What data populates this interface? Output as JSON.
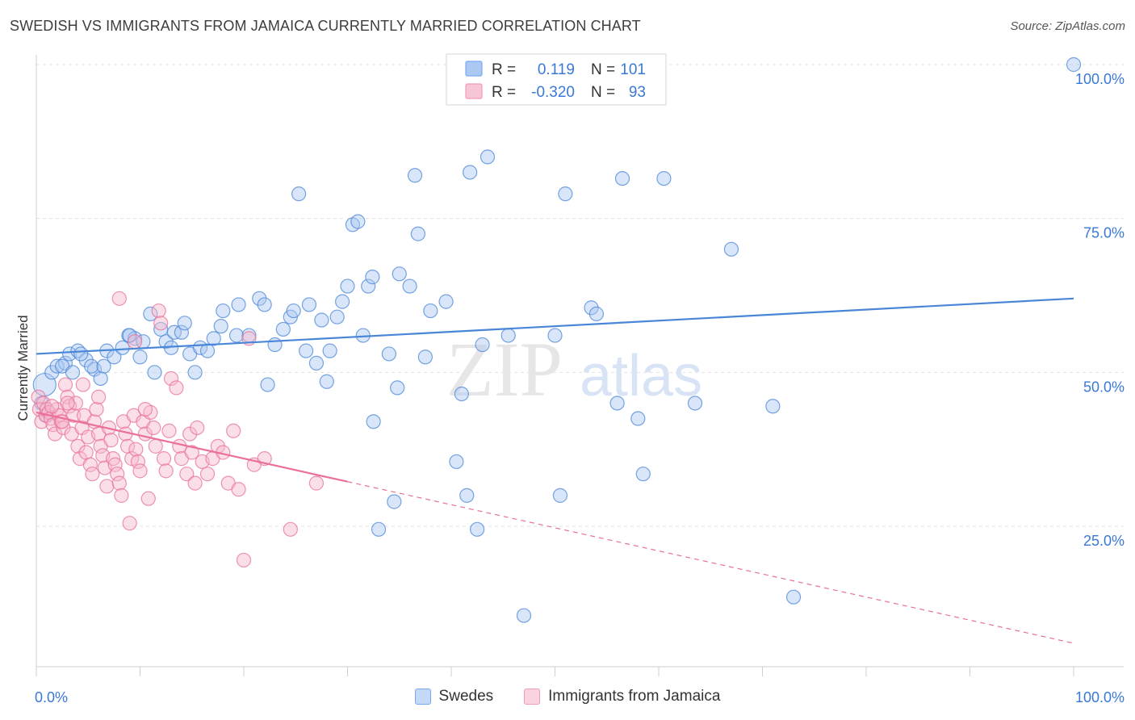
{
  "title": "SWEDISH VS IMMIGRANTS FROM JAMAICA CURRENTLY MARRIED CORRELATION CHART",
  "source": "Source: ZipAtlas.com",
  "watermark": {
    "zip": "ZIP",
    "atlas": "atlas"
  },
  "stats_legend": {
    "rows": [
      {
        "r_label": "R =",
        "r_value": "0.119",
        "n_label": "N =",
        "n_value": "101",
        "color": "#7aaaf0"
      },
      {
        "r_label": "R =",
        "r_value": "-0.320",
        "n_label": "N =",
        "n_value": "93",
        "color": "#f29bb8"
      }
    ]
  },
  "chart_data": {
    "type": "scatter",
    "xlabel": "",
    "ylabel": "Currently Married",
    "x_tick_labels": [
      "0.0%",
      "100.0%"
    ],
    "y_tick_labels": [
      "25.0%",
      "50.0%",
      "75.0%",
      "100.0%"
    ],
    "y_ticks": [
      25,
      50,
      75,
      100
    ],
    "xlim": [
      0,
      100
    ],
    "ylim": [
      0,
      100
    ],
    "grid": true,
    "series": [
      {
        "name": "Swedes",
        "color": "#4a86d8",
        "fill": "#aac8f2",
        "trend": {
          "x0": 0,
          "y0": 53.0,
          "x1": 100,
          "y1": 62.0,
          "dashed_from": null
        },
        "points": [
          [
            0.8,
            48
          ],
          [
            1.5,
            50
          ],
          [
            2.0,
            51
          ],
          [
            2.8,
            51.5
          ],
          [
            3.2,
            53
          ],
          [
            4.0,
            53.5
          ],
          [
            4.8,
            52
          ],
          [
            5.6,
            50.5
          ],
          [
            6.2,
            49
          ],
          [
            6.8,
            53.5
          ],
          [
            7.5,
            52.5
          ],
          [
            8.3,
            54
          ],
          [
            8.9,
            56
          ],
          [
            9.5,
            55.5
          ],
          [
            10.0,
            52.5
          ],
          [
            10.3,
            55
          ],
          [
            11.0,
            59.5
          ],
          [
            11.4,
            50
          ],
          [
            12.0,
            57
          ],
          [
            12.5,
            55
          ],
          [
            13.0,
            54
          ],
          [
            13.3,
            56.5
          ],
          [
            14.0,
            56.5
          ],
          [
            14.3,
            58
          ],
          [
            14.8,
            53
          ],
          [
            15.3,
            50
          ],
          [
            15.8,
            54
          ],
          [
            16.5,
            53.5
          ],
          [
            17.1,
            55.5
          ],
          [
            17.8,
            57.5
          ],
          [
            18.0,
            60
          ],
          [
            19.3,
            56
          ],
          [
            19.5,
            61
          ],
          [
            20.5,
            56
          ],
          [
            21.5,
            62
          ],
          [
            22.0,
            61
          ],
          [
            22.3,
            48
          ],
          [
            23.0,
            54.5
          ],
          [
            23.8,
            57
          ],
          [
            24.5,
            59
          ],
          [
            24.8,
            60
          ],
          [
            25.3,
            79
          ],
          [
            26.0,
            53.5
          ],
          [
            26.3,
            61
          ],
          [
            27.0,
            51.5
          ],
          [
            27.5,
            58.5
          ],
          [
            28.0,
            48.5
          ],
          [
            28.3,
            53.5
          ],
          [
            29.0,
            59
          ],
          [
            29.5,
            61.5
          ],
          [
            30.0,
            64
          ],
          [
            30.5,
            74
          ],
          [
            31.0,
            74.5
          ],
          [
            31.5,
            56
          ],
          [
            32.0,
            64
          ],
          [
            32.4,
            65.5
          ],
          [
            32.5,
            42
          ],
          [
            33.0,
            24.5
          ],
          [
            34.0,
            53
          ],
          [
            34.5,
            29
          ],
          [
            34.8,
            47.5
          ],
          [
            35.0,
            66
          ],
          [
            36.0,
            64
          ],
          [
            36.5,
            82
          ],
          [
            36.8,
            72.5
          ],
          [
            37.5,
            52.5
          ],
          [
            38.0,
            60
          ],
          [
            39.5,
            61.5
          ],
          [
            40.5,
            35.5
          ],
          [
            41.0,
            46.5
          ],
          [
            41.5,
            30
          ],
          [
            41.8,
            82.5
          ],
          [
            42.5,
            24.5
          ],
          [
            43.0,
            54.5
          ],
          [
            43.5,
            85
          ],
          [
            45.5,
            56
          ],
          [
            47.0,
            10.5
          ],
          [
            47.5,
            100
          ],
          [
            50.0,
            56
          ],
          [
            50.5,
            30
          ],
          [
            51.0,
            79
          ],
          [
            53.5,
            60.5
          ],
          [
            54.0,
            59.5
          ],
          [
            56.0,
            45
          ],
          [
            56.5,
            81.5
          ],
          [
            58.0,
            42.5
          ],
          [
            58.5,
            33.5
          ],
          [
            60.5,
            81.5
          ],
          [
            63.5,
            45
          ],
          [
            67.0,
            70
          ],
          [
            71.0,
            44.5
          ],
          [
            73.0,
            13.5
          ],
          [
            100.0,
            100
          ],
          [
            0.5,
            45
          ],
          [
            1.0,
            43
          ],
          [
            4.3,
            53
          ],
          [
            9.0,
            56
          ],
          [
            5.3,
            51
          ],
          [
            6.5,
            51
          ],
          [
            2.5,
            51
          ],
          [
            3.5,
            50
          ]
        ]
      },
      {
        "name": "Immigrants from Jamaica",
        "color": "#e8709a",
        "fill": "#f6b8cc",
        "trend": {
          "x0": 0,
          "y0": 43.5,
          "x1": 100,
          "y1": 6.0,
          "dashed_from": 30
        },
        "points": [
          [
            0.2,
            46
          ],
          [
            0.3,
            44
          ],
          [
            0.5,
            42
          ],
          [
            0.7,
            45
          ],
          [
            0.9,
            43
          ],
          [
            1.0,
            44
          ],
          [
            1.2,
            43.5
          ],
          [
            1.4,
            42.5
          ],
          [
            1.6,
            41.5
          ],
          [
            1.8,
            40
          ],
          [
            2.0,
            44
          ],
          [
            2.2,
            43
          ],
          [
            2.4,
            42
          ],
          [
            2.6,
            41
          ],
          [
            2.8,
            48
          ],
          [
            3.0,
            46
          ],
          [
            3.2,
            44.5
          ],
          [
            3.4,
            40
          ],
          [
            3.6,
            43
          ],
          [
            3.8,
            45
          ],
          [
            4.0,
            38
          ],
          [
            4.2,
            36
          ],
          [
            4.4,
            41
          ],
          [
            4.6,
            43
          ],
          [
            4.8,
            37
          ],
          [
            5.0,
            39.5
          ],
          [
            5.2,
            35
          ],
          [
            5.4,
            33.5
          ],
          [
            5.6,
            42
          ],
          [
            5.8,
            44
          ],
          [
            6.0,
            40
          ],
          [
            6.2,
            38
          ],
          [
            6.4,
            36.5
          ],
          [
            6.6,
            34.5
          ],
          [
            6.8,
            31.5
          ],
          [
            7.0,
            41
          ],
          [
            7.2,
            39
          ],
          [
            7.4,
            36
          ],
          [
            7.6,
            35
          ],
          [
            7.8,
            33.5
          ],
          [
            8.0,
            32
          ],
          [
            8.2,
            30
          ],
          [
            8.4,
            42
          ],
          [
            8.6,
            40
          ],
          [
            8.8,
            38
          ],
          [
            9.0,
            25.5
          ],
          [
            9.2,
            36
          ],
          [
            9.4,
            43
          ],
          [
            9.6,
            37.5
          ],
          [
            9.8,
            35.5
          ],
          [
            10.0,
            34
          ],
          [
            10.3,
            42
          ],
          [
            10.5,
            40
          ],
          [
            10.8,
            29.5
          ],
          [
            11.0,
            43.5
          ],
          [
            11.3,
            41
          ],
          [
            11.5,
            38
          ],
          [
            11.8,
            60
          ],
          [
            12.0,
            58
          ],
          [
            12.3,
            36
          ],
          [
            12.5,
            34
          ],
          [
            12.8,
            40.5
          ],
          [
            13.0,
            49
          ],
          [
            13.5,
            47.5
          ],
          [
            13.8,
            38
          ],
          [
            14.0,
            36
          ],
          [
            14.5,
            33.5
          ],
          [
            14.8,
            40
          ],
          [
            15.0,
            37
          ],
          [
            15.3,
            32
          ],
          [
            15.5,
            41
          ],
          [
            16.0,
            35.5
          ],
          [
            16.5,
            33.5
          ],
          [
            17.0,
            36
          ],
          [
            17.5,
            38
          ],
          [
            18.0,
            37
          ],
          [
            18.5,
            32
          ],
          [
            19.0,
            40.5
          ],
          [
            19.5,
            31
          ],
          [
            20.0,
            19.5
          ],
          [
            20.5,
            55.5
          ],
          [
            21.0,
            35
          ],
          [
            22.0,
            36
          ],
          [
            10.5,
            44
          ],
          [
            8.0,
            62
          ],
          [
            24.5,
            24.5
          ],
          [
            27.0,
            32
          ],
          [
            6.0,
            46
          ],
          [
            3.0,
            45
          ],
          [
            2.5,
            42
          ],
          [
            1.5,
            44.5
          ],
          [
            4.5,
            48
          ],
          [
            9.5,
            55
          ]
        ]
      }
    ]
  }
}
